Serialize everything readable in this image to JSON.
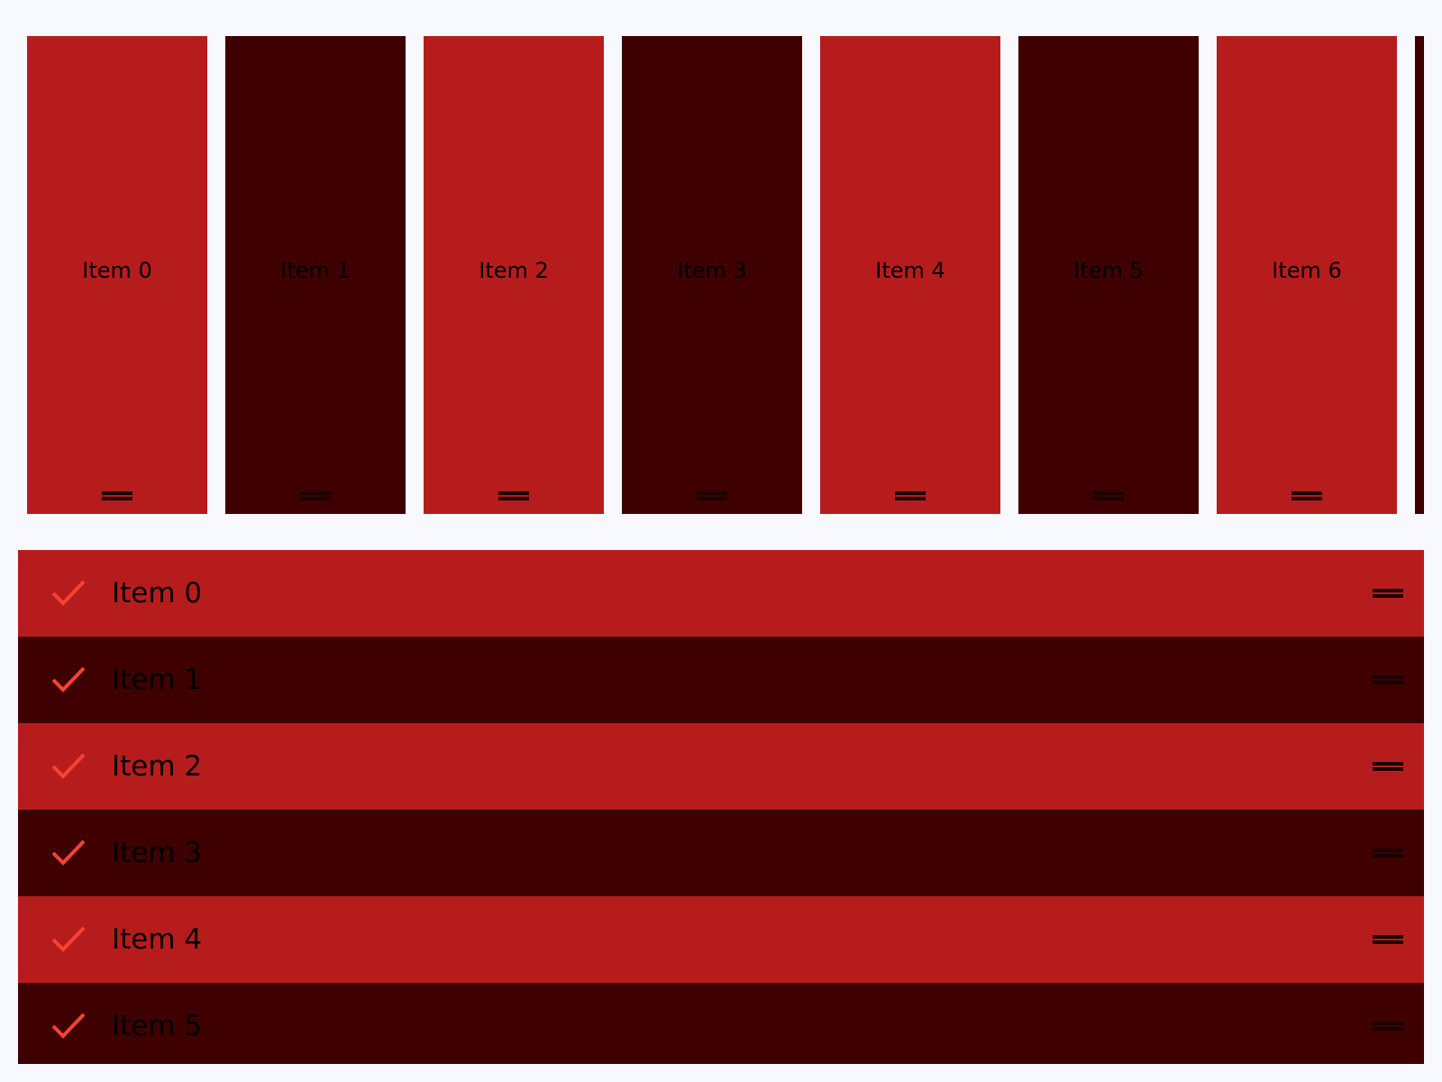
{
  "colors": {
    "primary": "#B71C1C",
    "dark": "#3E0000",
    "check": "#F44336",
    "background": "#F7F9FE"
  },
  "horizontal_list": {
    "items": [
      {
        "label": "Item 0",
        "color": "#B71C1C"
      },
      {
        "label": "Item 1",
        "color": "#3E0000"
      },
      {
        "label": "Item 2",
        "color": "#B71C1C"
      },
      {
        "label": "Item 3",
        "color": "#3E0000"
      },
      {
        "label": "Item 4",
        "color": "#B71C1C"
      },
      {
        "label": "Item 5",
        "color": "#3E0000"
      },
      {
        "label": "Item 6",
        "color": "#B71C1C"
      },
      {
        "label": "",
        "color": "#3E0000"
      }
    ]
  },
  "vertical_list": {
    "items": [
      {
        "label": "Item 0",
        "color": "#B71C1C",
        "icon": "check-icon"
      },
      {
        "label": "Item 1",
        "color": "#3E0000",
        "icon": "check-icon"
      },
      {
        "label": "Item 2",
        "color": "#B71C1C",
        "icon": "check-icon"
      },
      {
        "label": "Item 3",
        "color": "#3E0000",
        "icon": "check-icon"
      },
      {
        "label": "Item 4",
        "color": "#B71C1C",
        "icon": "check-icon"
      },
      {
        "label": "Item 5",
        "color": "#3E0000",
        "icon": "check-icon"
      }
    ]
  }
}
